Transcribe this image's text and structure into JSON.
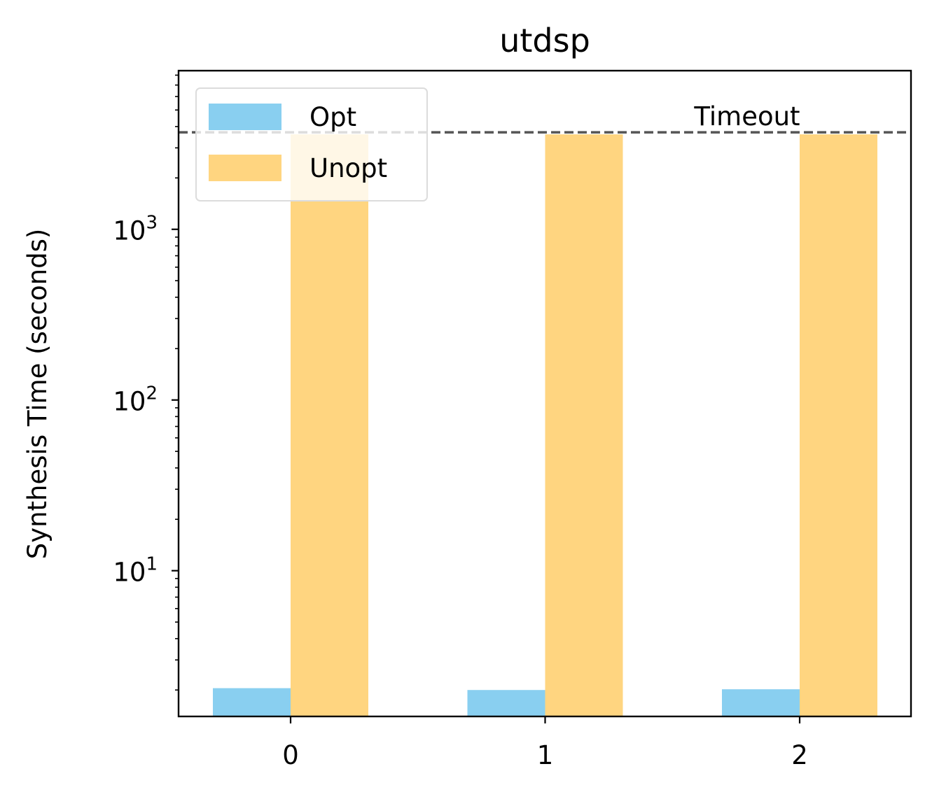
{
  "chart_data": {
    "type": "bar",
    "title": "utdsp",
    "xlabel": "",
    "ylabel": "Synthesis Time (seconds)",
    "yscale": "log",
    "categories": [
      "0",
      "1",
      "2"
    ],
    "series": [
      {
        "name": "Opt",
        "color": "#89CFF0",
        "values": [
          2.05,
          2.0,
          2.02
        ]
      },
      {
        "name": "Unopt",
        "color": "#FFD580",
        "values": [
          3600,
          3600,
          3600
        ]
      }
    ],
    "ylim": [
      1.4,
      8500
    ],
    "yticks": [
      {
        "value": 10,
        "base": "10",
        "exp": "1"
      },
      {
        "value": 100,
        "base": "10",
        "exp": "2"
      },
      {
        "value": 1000,
        "base": "10",
        "exp": "3"
      }
    ],
    "reference_line": {
      "value": 3700,
      "label": "Timeout",
      "color": "#555555",
      "style": "dashed"
    },
    "legend": {
      "placement": "top-left"
    },
    "grid": false
  }
}
